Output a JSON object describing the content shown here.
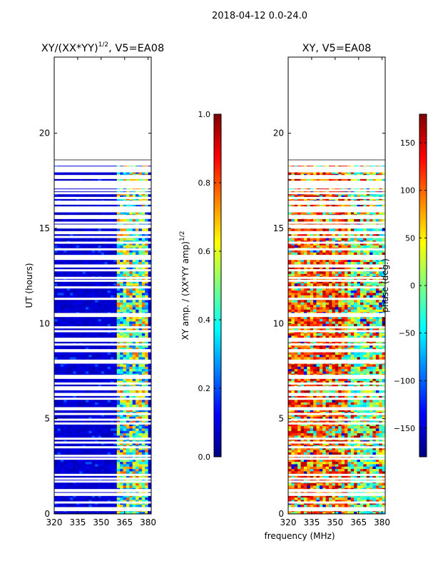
{
  "figure_title": "2018-04-12 0.0-24.0",
  "shared_xlabel": "frequency (MHz)",
  "colors": {
    "jet": [
      "#00007f",
      "#0000ff",
      "#007fff",
      "#00ffff",
      "#7fff7f",
      "#ffff00",
      "#ff7f00",
      "#ff0000",
      "#7f0000"
    ],
    "gap": "#ffffff",
    "frame": "#000000"
  },
  "chart_data": [
    {
      "type": "heatmap",
      "title_main": "XY/(XX*YY)",
      "title_sup": "1/2",
      "title_suffix": ", V5=EA08",
      "xlabel": "",
      "ylabel": "UT (hours)",
      "xlim": [
        320,
        382
      ],
      "ylim": [
        0,
        24
      ],
      "xticks": [
        320,
        335,
        350,
        365,
        380
      ],
      "yticks": [
        0,
        5,
        10,
        15,
        20
      ],
      "data_extent_hours": [
        0,
        18.5
      ],
      "hot_band_mhz": [
        360,
        380
      ],
      "colorbar": {
        "label_main": "XY amp. / (XX*YY amp)",
        "label_sup": "1/2",
        "range": [
          0.0,
          1.0
        ],
        "ticks": [
          0.0,
          0.2,
          0.4,
          0.6,
          0.8,
          1.0
        ],
        "tick_labels": [
          "0.0",
          "0.2",
          "0.4",
          "0.6",
          "0.8",
          "1.0"
        ]
      }
    },
    {
      "type": "heatmap",
      "title_main": "XY, V5=EA08",
      "xlabel": "frequency (MHz)",
      "ylabel": "",
      "xlim": [
        320,
        382
      ],
      "ylim": [
        0,
        24
      ],
      "xticks": [
        320,
        335,
        350,
        365,
        380
      ],
      "yticks": [
        0,
        5,
        10,
        15,
        20
      ],
      "data_extent_hours": [
        0,
        18.5
      ],
      "colorbar": {
        "label_main": "phase (deg.)",
        "range": [
          -180,
          180
        ],
        "ticks": [
          -150,
          -100,
          -50,
          0,
          50,
          100,
          150
        ],
        "tick_labels": [
          "−150",
          "−100",
          "−50",
          "0",
          "50",
          "100",
          "150"
        ]
      }
    }
  ],
  "gap_rows_hours": [
    0.2,
    0.3,
    0.6,
    1.0,
    1.05,
    1.2,
    1.25,
    1.7,
    1.85,
    2.05,
    2.9,
    3.05,
    3.5,
    3.75,
    3.95,
    4.75,
    4.95,
    5.25,
    5.5,
    5.55,
    6.05,
    6.25,
    6.3,
    6.55,
    6.65,
    6.85,
    7.15,
    7.25,
    7.95,
    8.05,
    8.55,
    8.6,
    8.9,
    9.1,
    9.2,
    9.6,
    9.8,
    10.4,
    10.5,
    11.3,
    11.9,
    12.25,
    12.4,
    12.8,
    13.0,
    13.05,
    13.4,
    13.45,
    13.55,
    13.9,
    14.25,
    14.55,
    14.75,
    14.8,
    15.05,
    15.15,
    15.3,
    15.55,
    15.65,
    15.9,
    16.0,
    16.1,
    16.3,
    16.4,
    16.6,
    16.85,
    17.0,
    17.15,
    17.25,
    17.35,
    17.45,
    17.65,
    17.75,
    18.0,
    18.1,
    18.2,
    18.35,
    18.45
  ]
}
